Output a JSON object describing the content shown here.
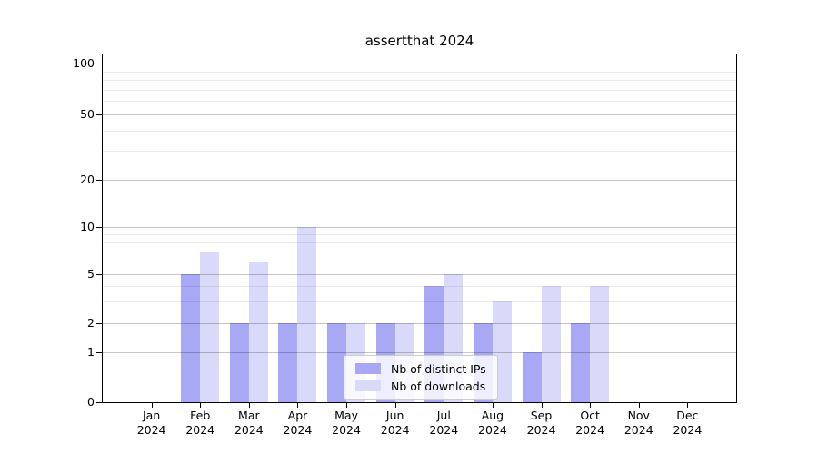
{
  "chart_data": {
    "type": "bar",
    "title": "assertthat 2024",
    "categories": [
      "Jan",
      "Feb",
      "Mar",
      "Apr",
      "May",
      "Jun",
      "Jul",
      "Aug",
      "Sep",
      "Oct",
      "Nov",
      "Dec"
    ],
    "category_sublabel": "2024",
    "series": [
      {
        "name": "Nb of distinct IPs",
        "color": "#a8a8f4",
        "values": [
          0,
          5,
          2,
          2,
          2,
          2,
          4,
          2,
          1,
          2,
          0,
          0
        ]
      },
      {
        "name": "Nb of downloads",
        "color": "#d9d9fa",
        "values": [
          0,
          7,
          6,
          10,
          2,
          2,
          5,
          3,
          4,
          4,
          0,
          0
        ]
      }
    ],
    "yscale": "symlog",
    "ylim": [
      0,
      130
    ],
    "y_major_ticks": [
      0,
      1,
      2,
      5,
      10,
      20,
      50,
      100
    ],
    "y_tick_labels": [
      "0",
      "1",
      "2",
      "5",
      "10",
      "20",
      "50",
      "100"
    ],
    "y_minor_gridlines": [
      3,
      4,
      6,
      7,
      8,
      9,
      30,
      40,
      60,
      70,
      80,
      90
    ],
    "grid": true,
    "legend_position": "lower center",
    "colors": {
      "bar_distinct_ips": "#a8a8f4",
      "bar_downloads": "#d9d9fa",
      "major_grid": "rgba(0,0,0,0.22)",
      "minor_grid": "rgba(0,0,0,0.08)",
      "spine": "#000000",
      "text": "#000000",
      "legend_border": "#cccccc"
    }
  }
}
